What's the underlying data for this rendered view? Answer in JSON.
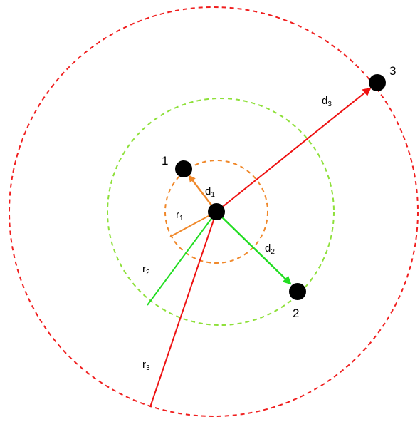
{
  "colors": {
    "ring1": "#f0882a",
    "ring2": "#8ee03a",
    "ring3": "#f01f1f",
    "radius1": "#f0882a",
    "radius2": "#22dd22",
    "radius3": "#ee1111",
    "vector1": "#f0882a",
    "vector2": "#22dd22",
    "vector3": "#ee1111",
    "point": "#000000"
  },
  "points": {
    "p1": {
      "label": "1"
    },
    "p2": {
      "label": "2"
    },
    "p3": {
      "label": "3"
    }
  },
  "labels": {
    "d1": {
      "main": "d",
      "sub": "1"
    },
    "d2": {
      "main": "d",
      "sub": "2"
    },
    "d3": {
      "main": "d",
      "sub": "3"
    },
    "r1": {
      "main": "r",
      "sub": "1"
    },
    "r2": {
      "main": "r",
      "sub": "2"
    },
    "r3": {
      "main": "r",
      "sub": "3"
    }
  }
}
